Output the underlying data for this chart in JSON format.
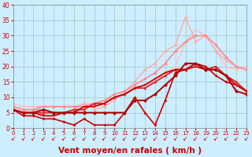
{
  "bg_color": "#cceeff",
  "grid_color": "#aacccc",
  "xlabel": "Vent moyen/en rafales ( km/h )",
  "ylabel_ticks": [
    0,
    5,
    10,
    15,
    20,
    25,
    30,
    35,
    40
  ],
  "xticks": [
    0,
    1,
    2,
    3,
    4,
    5,
    6,
    7,
    8,
    9,
    10,
    11,
    12,
    13,
    14,
    15,
    16,
    17,
    18,
    19,
    20,
    21,
    22,
    23
  ],
  "xlim": [
    0,
    23
  ],
  "ylim": [
    0,
    40
  ],
  "lines": [
    {
      "x": [
        0,
        1,
        2,
        3,
        4,
        5,
        6,
        7,
        8,
        9,
        10,
        11,
        12,
        13,
        14,
        15,
        16,
        17,
        18,
        19,
        20,
        21,
        22,
        23
      ],
      "y": [
        8,
        7,
        7,
        7,
        7,
        7,
        7,
        8,
        8,
        9,
        10,
        11,
        13,
        14,
        15,
        18,
        20,
        28,
        32,
        30,
        25,
        20,
        19,
        20
      ],
      "color": "#ffbbbb",
      "lw": 1.0,
      "marker": "o",
      "ms": 2.0,
      "alpha": 1.0,
      "zorder": 1
    },
    {
      "x": [
        0,
        1,
        2,
        3,
        4,
        5,
        6,
        7,
        8,
        9,
        10,
        11,
        12,
        13,
        14,
        15,
        16,
        17,
        18,
        19,
        20,
        21,
        22,
        23
      ],
      "y": [
        7,
        6,
        6,
        6,
        5,
        5,
        6,
        8,
        6,
        7,
        9,
        12,
        15,
        19,
        21,
        25,
        27,
        36,
        28,
        30,
        25,
        22,
        20,
        19
      ],
      "color": "#ffaaaa",
      "lw": 1.0,
      "marker": "o",
      "ms": 2.5,
      "alpha": 1.0,
      "zorder": 2
    },
    {
      "x": [
        0,
        1,
        2,
        3,
        4,
        5,
        6,
        7,
        8,
        9,
        10,
        11,
        12,
        13,
        14,
        15,
        16,
        17,
        18,
        19,
        20,
        21,
        22,
        23
      ],
      "y": [
        7,
        6,
        6,
        7,
        7,
        7,
        7,
        7,
        8,
        9,
        11,
        12,
        14,
        16,
        18,
        21,
        25,
        28,
        30,
        30,
        27,
        23,
        20,
        19
      ],
      "color": "#ff8888",
      "lw": 1.2,
      "marker": "o",
      "ms": 2.5,
      "alpha": 1.0,
      "zorder": 3
    },
    {
      "x": [
        0,
        1,
        2,
        3,
        4,
        5,
        6,
        7,
        8,
        9,
        10,
        11,
        12,
        13,
        14,
        15,
        16,
        17,
        18,
        19,
        20,
        21,
        22,
        23
      ],
      "y": [
        6,
        5,
        5,
        5,
        5,
        5,
        6,
        6,
        8,
        8,
        10,
        11,
        13,
        13,
        15,
        17,
        19,
        19,
        21,
        19,
        20,
        17,
        15,
        12
      ],
      "color": "#dd2222",
      "lw": 1.3,
      "marker": "^",
      "ms": 2.5,
      "alpha": 1.0,
      "zorder": 4
    },
    {
      "x": [
        0,
        1,
        2,
        3,
        4,
        5,
        6,
        7,
        8,
        9,
        10,
        11,
        12,
        13,
        14,
        15,
        16,
        17,
        18,
        19,
        20,
        21,
        22,
        23
      ],
      "y": [
        6,
        5,
        5,
        4,
        4,
        5,
        5,
        7,
        7,
        8,
        10,
        11,
        13,
        14,
        16,
        18,
        19,
        19,
        20,
        19,
        19,
        17,
        14,
        12
      ],
      "color": "#cc0000",
      "lw": 1.3,
      "marker": "s",
      "ms": 2.0,
      "alpha": 1.0,
      "zorder": 5
    },
    {
      "x": [
        0,
        1,
        2,
        3,
        4,
        5,
        6,
        7,
        8,
        9,
        10,
        11,
        12,
        13,
        14,
        15,
        16,
        17,
        18,
        19,
        20,
        21,
        22,
        23
      ],
      "y": [
        6,
        4,
        4,
        3,
        3,
        2,
        1,
        3,
        1,
        1,
        1,
        5,
        10,
        5,
        1,
        9,
        18,
        19,
        21,
        20,
        17,
        15,
        14,
        12
      ],
      "color": "#cc0000",
      "lw": 1.2,
      "marker": "D",
      "ms": 2.0,
      "alpha": 1.0,
      "zorder": 6
    },
    {
      "x": [
        0,
        1,
        2,
        3,
        4,
        5,
        6,
        7,
        8,
        9,
        10,
        11,
        12,
        13,
        14,
        15,
        16,
        17,
        18,
        19,
        20,
        21,
        22,
        23
      ],
      "y": [
        6,
        5,
        5,
        6,
        5,
        5,
        5,
        5,
        5,
        5,
        5,
        5,
        9,
        9,
        11,
        14,
        17,
        21,
        21,
        19,
        19,
        17,
        12,
        11
      ],
      "color": "#aa0000",
      "lw": 1.4,
      "marker": "D",
      "ms": 2.5,
      "alpha": 1.0,
      "zorder": 7
    }
  ],
  "arrow_color": "#cc0000",
  "arrow_fontsize": 5.5,
  "xlabel_color": "#cc0000",
  "xlabel_fontsize": 7.5,
  "tick_color": "#cc0000",
  "tick_fontsize_x": 5.0,
  "tick_fontsize_y": 5.5
}
